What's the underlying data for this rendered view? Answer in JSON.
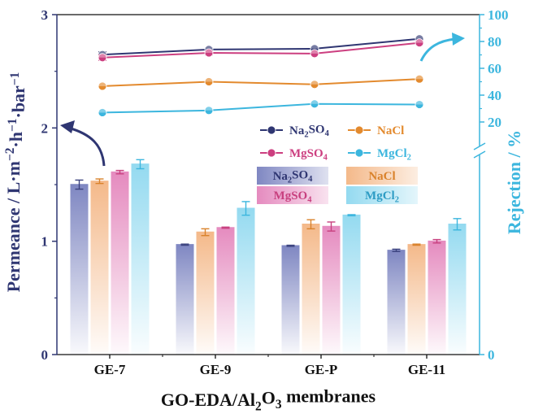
{
  "chart_data": {
    "type": "bar+line",
    "title": "",
    "xlabel": "GO-EDA/Al2O3 membranes",
    "xlabel_parts": [
      "GO-EDA/Al",
      "2",
      "O",
      "3",
      " membranes"
    ],
    "ylabel_left": "Permeance / L·m−2·h−1·bar−1",
    "ylabel_left_parts": [
      "Permeance / L·m",
      "−2",
      "·h",
      "−1",
      "·bar",
      "−1"
    ],
    "ylabel_right": "Rejection / %",
    "categories": [
      "GE-7",
      "GE-9",
      "GE-P",
      "GE-11"
    ],
    "left_axis": {
      "range": [
        0,
        3
      ],
      "ticks": [
        "0",
        "1",
        "2",
        "3"
      ],
      "tick_values": [
        0,
        1,
        2,
        3
      ]
    },
    "right_axis": {
      "range": [
        0,
        100
      ],
      "broken": true,
      "ticks": [
        "0",
        "20",
        "40",
        "60",
        "80",
        "100"
      ],
      "tick_values": [
        0,
        20,
        40,
        60,
        80,
        100
      ]
    },
    "bar_series": [
      {
        "name": "Na2SO4",
        "label_parts": [
          "Na",
          "2",
          "SO",
          "4"
        ],
        "color": "#7f87c2",
        "values": [
          1.5,
          0.97,
          0.96,
          0.92
        ],
        "errors": [
          0.04,
          0.005,
          0.005,
          0.01
        ]
      },
      {
        "name": "NaCl",
        "label_parts": [
          "NaCl"
        ],
        "color": "#f4b98a",
        "values": [
          1.53,
          1.08,
          1.15,
          0.97
        ],
        "errors": [
          0.02,
          0.03,
          0.04,
          0.005
        ]
      },
      {
        "name": "MgSO4",
        "label_parts": [
          "MgSO",
          "4"
        ],
        "color": "#e58bbf",
        "values": [
          1.61,
          1.12,
          1.13,
          1.0
        ],
        "errors": [
          0.015,
          0.005,
          0.04,
          0.015
        ]
      },
      {
        "name": "MgCl2",
        "label_parts": [
          "MgCl",
          "2"
        ],
        "color": "#94daf0",
        "values": [
          1.68,
          1.29,
          1.23,
          1.15
        ],
        "errors": [
          0.04,
          0.06,
          0.005,
          0.05
        ]
      }
    ],
    "line_series": [
      {
        "name": "Na2SO4",
        "label_parts": [
          "Na",
          "2",
          "SO",
          "4"
        ],
        "color": "#2f3672",
        "values": [
          70.2,
          74.0,
          74.6,
          82.0
        ],
        "errors": [
          2.0,
          1.2,
          1.2,
          1.0
        ]
      },
      {
        "name": "MgSO4",
        "label_parts": [
          "MgSO",
          "4"
        ],
        "color": "#cc3f80",
        "values": [
          68.0,
          71.5,
          71.0,
          79.0
        ],
        "errors": [
          2.0,
          1.5,
          1.0,
          1.2
        ]
      },
      {
        "name": "NaCl",
        "label_parts": [
          "NaCl"
        ],
        "color": "#e38a2e",
        "values": [
          46.7,
          50.0,
          48.0,
          52.0
        ],
        "errors": [
          1.0,
          0.8,
          0.6,
          0.6
        ]
      },
      {
        "name": "MgCl2",
        "label_parts": [
          "MgCl",
          "2"
        ],
        "color": "#3cb6de",
        "values": [
          27.0,
          28.6,
          33.5,
          33.0
        ],
        "errors": [
          0.6,
          0.8,
          0.6,
          0.6
        ]
      }
    ],
    "legend_position": "middle-right",
    "annotations": [
      "arrow pointing from bars to left axis",
      "arrow pointing from lines to right axis"
    ]
  }
}
